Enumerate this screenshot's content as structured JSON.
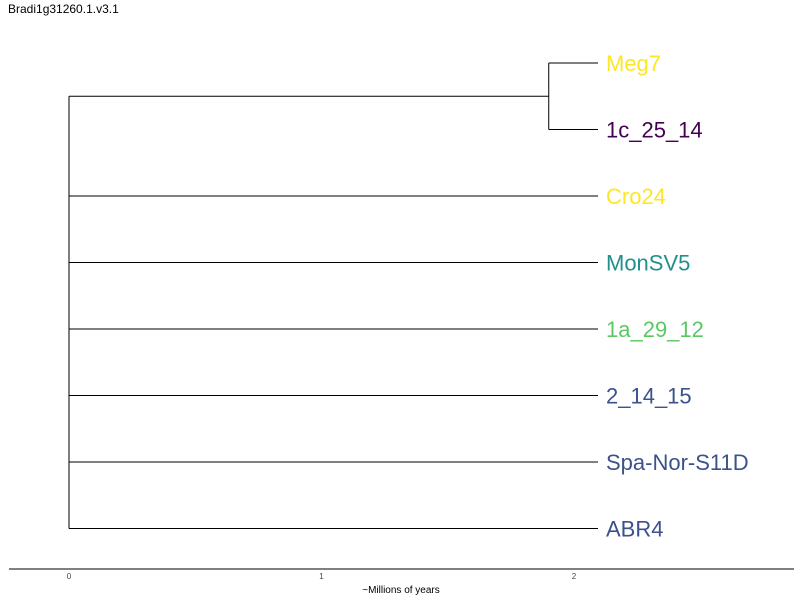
{
  "title": "Bradi1g31260.1.v3.1",
  "axis": {
    "xlabel": "~Millions of years",
    "range": [
      0,
      2.9
    ],
    "ticks": [
      0,
      1,
      2
    ]
  },
  "tree": {
    "leaves": [
      {
        "name": "Meg7",
        "color": "#FDE725"
      },
      {
        "name": "1c_25_14",
        "color": "#440154"
      },
      {
        "name": "Cro24",
        "color": "#FDE725"
      },
      {
        "name": "MonSV5",
        "color": "#21908C"
      },
      {
        "name": "1a_29_12",
        "color": "#5DC863"
      },
      {
        "name": "2_14_15",
        "color": "#3B528B"
      },
      {
        "name": "Spa-Nor-S11D",
        "color": "#3B528B"
      },
      {
        "name": "ABR4",
        "color": "#3B528B"
      }
    ],
    "clades": [
      {
        "members": [
          "Meg7",
          "1c_25_14"
        ],
        "node_age": 1.9
      }
    ],
    "root_age": 0
  }
}
